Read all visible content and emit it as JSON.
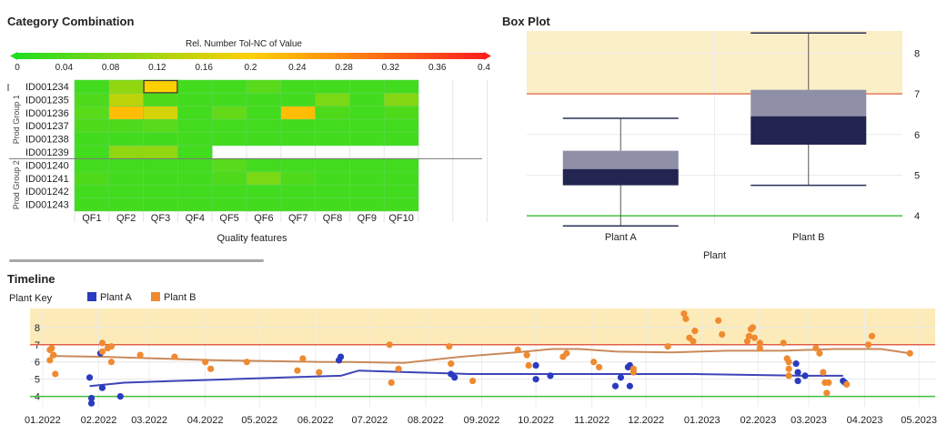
{
  "heatmap_panel": {
    "title": "Category Combination",
    "colorbar": {
      "label": "Rel. Number Tol-NC of Value",
      "ticks": [
        "0",
        "0.04",
        "0.08",
        "0.12",
        "0.16",
        "0.2",
        "0.24",
        "0.28",
        "0.32",
        "0.36",
        "0.4"
      ],
      "colors": [
        "#22dd22",
        "#ffd000",
        "#ff2020"
      ]
    },
    "group_labels": [
      "Prod Group 1",
      "Prod Group 2"
    ],
    "xlabel": "Quality features"
  },
  "boxplot_panel": {
    "title": "Box Plot",
    "xlabel": "Plant"
  },
  "timeline_panel": {
    "title": "Timeline",
    "legend_title": "Plant Key"
  },
  "chart_data": [
    {
      "type": "heatmap",
      "title": "Category Combination",
      "xlabel": "Quality features",
      "legend_title": "Rel. Number Tol-NC of Value",
      "color_range": [
        0,
        0.4
      ],
      "columns": [
        "QF1",
        "QF2",
        "QF3",
        "QF4",
        "QF5",
        "QF6",
        "QF7",
        "QF8",
        "QF9",
        "QF10"
      ],
      "rows": [
        "ID001234",
        "ID001235",
        "ID001236",
        "ID001237",
        "ID001238",
        "ID001239",
        "ID001240",
        "ID001241",
        "ID001242",
        "ID001243"
      ],
      "groups": [
        {
          "name": "Prod Group 1",
          "rows": [
            "ID001234",
            "ID001235",
            "ID001236",
            "ID001237",
            "ID001238",
            "ID001239"
          ]
        },
        {
          "name": "Prod Group 2",
          "rows": [
            "ID001240",
            "ID001241",
            "ID001242",
            "ID001243"
          ]
        }
      ],
      "values": [
        [
          0.03,
          0.1,
          0.2,
          0.03,
          0.03,
          0.05,
          0.03,
          0.03,
          0.03,
          0.03
        ],
        [
          0.04,
          0.14,
          0.04,
          0.03,
          0.03,
          0.03,
          0.03,
          0.08,
          0.03,
          0.09
        ],
        [
          0.05,
          0.22,
          0.16,
          0.03,
          0.06,
          0.03,
          0.22,
          0.04,
          0.03,
          0.04
        ],
        [
          0.04,
          0.04,
          0.05,
          0.03,
          0.03,
          0.03,
          0.03,
          0.03,
          0.03,
          0.03
        ],
        [
          0.03,
          0.03,
          0.03,
          0.03,
          0.03,
          0.03,
          0.03,
          0.03,
          0.03,
          0.03
        ],
        [
          0.03,
          0.1,
          0.1,
          0.03,
          null,
          null,
          null,
          null,
          null,
          null
        ],
        [
          0.03,
          0.03,
          0.03,
          0.03,
          0.05,
          0.03,
          0.03,
          0.03,
          0.03,
          0.03
        ],
        [
          0.04,
          0.03,
          0.03,
          0.03,
          0.04,
          0.08,
          0.04,
          0.03,
          0.03,
          0.03
        ],
        [
          0.03,
          0.03,
          0.03,
          0.03,
          0.03,
          0.03,
          0.03,
          0.03,
          0.03,
          0.03
        ],
        [
          0.03,
          0.03,
          0.03,
          0.03,
          0.03,
          0.03,
          0.03,
          0.03,
          0.03,
          0.03
        ]
      ],
      "highlight_cell": [
        "ID001234",
        "QF3"
      ]
    },
    {
      "type": "box",
      "title": "Box Plot",
      "xlabel": "Plant",
      "categories": [
        "Plant A",
        "Plant B"
      ],
      "ylim": [
        3.8,
        8.55
      ],
      "y_ticks": [
        4,
        5,
        6,
        7,
        8
      ],
      "upper_limit": 7,
      "lower_limit": 4,
      "boxes": [
        {
          "name": "Plant A",
          "min": 3.75,
          "q1": 4.75,
          "median": 5.15,
          "q3": 5.6,
          "max": 6.4
        },
        {
          "name": "Plant B",
          "min": 4.75,
          "q1": 5.75,
          "median": 6.45,
          "q3": 7.1,
          "max": 8.5
        }
      ]
    },
    {
      "type": "scatter",
      "title": "Timeline",
      "x_range": [
        "2021-12-25",
        "2023-05-10"
      ],
      "x_ticks": [
        "2022-01-01",
        "2022-02-01",
        "2022-03-01",
        "2022-04-01",
        "2022-05-01",
        "2022-06-01",
        "2022-07-01",
        "2022-08-01",
        "2022-09-01",
        "2022-10-01",
        "2022-11-01",
        "2022-12-01",
        "2023-01-01",
        "2023-02-01",
        "2023-03-01",
        "2023-04-01",
        "2023-05-01"
      ],
      "x_tick_labels": [
        "01.2022",
        "02.2022",
        "03.2022",
        "04.2022",
        "05.2022",
        "06.2022",
        "07.2022",
        "08.2022",
        "09.2022",
        "10.2022",
        "11.2022",
        "12.2022",
        "01.2023",
        "02.2023",
        "03.2023",
        "04.2023",
        "05.2023"
      ],
      "ylim": [
        3.4,
        9.1
      ],
      "y_ticks": [
        4,
        5,
        6,
        7,
        8
      ],
      "upper_limit": 7,
      "lower_limit": 4,
      "series": [
        {
          "name": "Plant A",
          "color": "#2b3bc0",
          "points": [
            [
              "2022-01-27",
              5.1
            ],
            [
              "2022-01-28",
              3.9
            ],
            [
              "2022-01-28",
              3.6
            ],
            [
              "2022-02-02",
              6.5
            ],
            [
              "2022-02-03",
              4.5
            ],
            [
              "2022-02-13",
              4.0
            ],
            [
              "2022-06-14",
              6.1
            ],
            [
              "2022-06-15",
              6.3
            ],
            [
              "2022-08-15",
              5.3
            ],
            [
              "2022-08-17",
              5.1
            ],
            [
              "2022-10-01",
              5.8
            ],
            [
              "2022-10-01",
              5.0
            ],
            [
              "2022-10-09",
              5.2
            ],
            [
              "2022-11-14",
              4.6
            ],
            [
              "2022-11-17",
              5.1
            ],
            [
              "2022-11-21",
              5.7
            ],
            [
              "2022-11-22",
              5.8
            ],
            [
              "2022-11-22",
              4.6
            ],
            [
              "2023-02-22",
              5.9
            ],
            [
              "2023-02-23",
              5.4
            ],
            [
              "2023-02-27",
              5.2
            ],
            [
              "2023-02-23",
              4.9
            ],
            [
              "2023-03-20",
              4.9
            ],
            [
              "2023-03-21",
              4.8
            ]
          ],
          "trend": [
            [
              "2022-01-27",
              4.6
            ],
            [
              "2022-02-15",
              4.8
            ],
            [
              "2022-03-15",
              4.9
            ],
            [
              "2022-04-15",
              5.0
            ],
            [
              "2022-05-15",
              5.1
            ],
            [
              "2022-06-15",
              5.2
            ],
            [
              "2022-06-25",
              5.5
            ],
            [
              "2022-07-25",
              5.4
            ],
            [
              "2022-08-25",
              5.3
            ],
            [
              "2022-09-25",
              5.3
            ],
            [
              "2022-10-25",
              5.3
            ],
            [
              "2022-11-25",
              5.3
            ],
            [
              "2022-12-25",
              5.3
            ],
            [
              "2023-01-25",
              5.25
            ],
            [
              "2023-02-25",
              5.2
            ],
            [
              "2023-03-20",
              5.2
            ]
          ]
        },
        {
          "name": "Plant B",
          "color": "#ef8a30",
          "points": [
            [
              "2022-01-05",
              6.1
            ],
            [
              "2022-01-05",
              6.7
            ],
            [
              "2022-01-06",
              6.8
            ],
            [
              "2022-01-07",
              6.4
            ],
            [
              "2022-01-08",
              5.3
            ],
            [
              "2022-02-03",
              7.1
            ],
            [
              "2022-02-03",
              6.6
            ],
            [
              "2022-02-06",
              6.8
            ],
            [
              "2022-02-08",
              6.9
            ],
            [
              "2022-02-08",
              6.0
            ],
            [
              "2022-02-24",
              6.4
            ],
            [
              "2022-03-15",
              6.3
            ],
            [
              "2022-04-01",
              6.0
            ],
            [
              "2022-04-04",
              5.6
            ],
            [
              "2022-04-24",
              6.0
            ],
            [
              "2022-05-22",
              5.5
            ],
            [
              "2022-05-25",
              6.2
            ],
            [
              "2022-06-03",
              5.4
            ],
            [
              "2022-07-12",
              7.0
            ],
            [
              "2022-07-13",
              4.8
            ],
            [
              "2022-07-17",
              5.6
            ],
            [
              "2022-08-14",
              6.9
            ],
            [
              "2022-08-15",
              5.9
            ],
            [
              "2022-08-27",
              4.9
            ],
            [
              "2022-09-21",
              6.7
            ],
            [
              "2022-09-26",
              6.4
            ],
            [
              "2022-09-27",
              5.8
            ],
            [
              "2022-10-16",
              6.3
            ],
            [
              "2022-10-18",
              6.5
            ],
            [
              "2022-11-02",
              6.0
            ],
            [
              "2022-11-05",
              5.7
            ],
            [
              "2022-11-24",
              5.6
            ],
            [
              "2022-11-24",
              5.4
            ],
            [
              "2022-12-13",
              6.9
            ],
            [
              "2022-12-22",
              8.8
            ],
            [
              "2022-12-23",
              8.5
            ],
            [
              "2022-12-25",
              7.4
            ],
            [
              "2022-12-27",
              7.2
            ],
            [
              "2022-12-28",
              7.8
            ],
            [
              "2023-01-10",
              8.4
            ],
            [
              "2023-01-12",
              7.6
            ],
            [
              "2023-01-26",
              7.2
            ],
            [
              "2023-01-27",
              7.5
            ],
            [
              "2023-01-28",
              7.9
            ],
            [
              "2023-01-29",
              8.0
            ],
            [
              "2023-01-30",
              7.4
            ],
            [
              "2023-02-02",
              7.1
            ],
            [
              "2023-02-02",
              6.8
            ],
            [
              "2023-02-15",
              7.1
            ],
            [
              "2023-02-17",
              6.2
            ],
            [
              "2023-02-18",
              6.0
            ],
            [
              "2023-02-18",
              5.6
            ],
            [
              "2023-02-18",
              5.2
            ],
            [
              "2023-03-05",
              6.8
            ],
            [
              "2023-03-07",
              6.5
            ],
            [
              "2023-03-09",
              5.4
            ],
            [
              "2023-03-10",
              4.8
            ],
            [
              "2023-03-11",
              4.2
            ],
            [
              "2023-03-12",
              4.8
            ],
            [
              "2023-04-03",
              7.0
            ],
            [
              "2023-04-05",
              7.5
            ],
            [
              "2023-04-26",
              6.5
            ],
            [
              "2023-03-22",
              4.7
            ]
          ],
          "trend": [
            [
              "2022-01-05",
              6.35
            ],
            [
              "2022-02-05",
              6.3
            ],
            [
              "2022-03-05",
              6.2
            ],
            [
              "2022-04-05",
              6.1
            ],
            [
              "2022-05-05",
              6.05
            ],
            [
              "2022-06-05",
              6.0
            ],
            [
              "2022-06-20",
              6.0
            ],
            [
              "2022-07-20",
              5.95
            ],
            [
              "2022-08-20",
              6.3
            ],
            [
              "2022-09-20",
              6.55
            ],
            [
              "2022-10-10",
              6.75
            ],
            [
              "2022-10-25",
              6.75
            ],
            [
              "2022-11-15",
              6.6
            ],
            [
              "2022-12-15",
              6.55
            ],
            [
              "2023-01-15",
              6.65
            ],
            [
              "2023-02-15",
              6.65
            ],
            [
              "2023-03-15",
              6.75
            ],
            [
              "2023-04-10",
              6.75
            ],
            [
              "2023-04-26",
              6.5
            ]
          ]
        }
      ]
    }
  ]
}
